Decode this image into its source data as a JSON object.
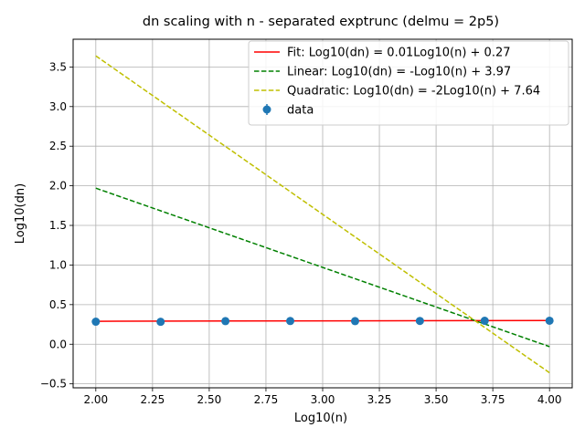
{
  "chart_data": {
    "type": "line",
    "title": "dn scaling with n - separated exptrunc (delmu = 2p5)",
    "xlabel": "Log10(n)",
    "ylabel": "Log10(dn)",
    "xlim": [
      1.9,
      4.1
    ],
    "ylim": [
      -0.55,
      3.85
    ],
    "x_ticks": [
      "2.00",
      "2.25",
      "2.50",
      "2.75",
      "3.00",
      "3.25",
      "3.50",
      "3.75",
      "4.00"
    ],
    "y_ticks": [
      "−0.5",
      "0.0",
      "0.5",
      "1.0",
      "1.5",
      "2.0",
      "2.5",
      "3.0",
      "3.5"
    ],
    "grid": true,
    "legend_position": "top-right",
    "series": [
      {
        "name": "Fit: Log10(dn) = 0.01Log10(n) + 0.27",
        "style": "solid",
        "color": "#ff0000",
        "x": [
          2.0,
          4.0
        ],
        "y": [
          0.29,
          0.3
        ]
      },
      {
        "name": "Linear: Log10(dn) = -Log10(n) + 3.97",
        "style": "dashed",
        "color": "#008000",
        "x": [
          2.0,
          4.0
        ],
        "y": [
          1.97,
          -0.03
        ]
      },
      {
        "name": "Quadratic: Log10(dn) = -2Log10(n) + 7.64",
        "style": "dashed",
        "color": "#bfbf00",
        "x": [
          2.0,
          4.0
        ],
        "y": [
          3.64,
          -0.36
        ]
      },
      {
        "name": "data",
        "style": "markers",
        "color": "#1f77b4",
        "x": [
          2.0,
          2.2857,
          2.5714,
          2.8571,
          3.1429,
          3.4286,
          3.7143,
          4.0
        ],
        "y": [
          0.285,
          0.283,
          0.292,
          0.293,
          0.292,
          0.294,
          0.296,
          0.297
        ]
      }
    ]
  }
}
